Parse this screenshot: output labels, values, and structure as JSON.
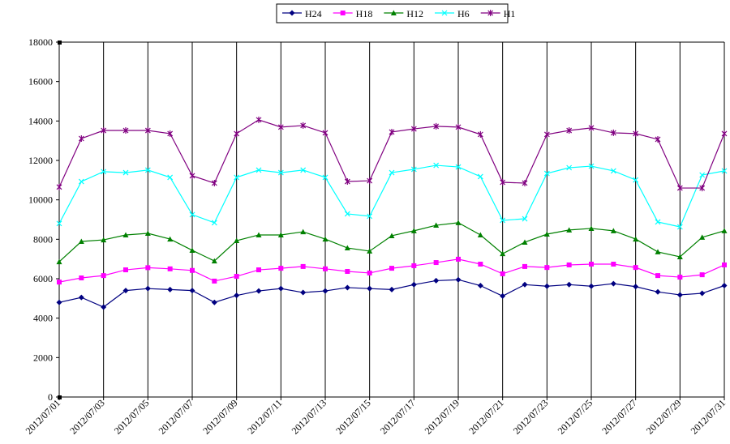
{
  "chart_data": {
    "type": "line",
    "categories": [
      "2012/07/01",
      null,
      "2012/07/03",
      null,
      "2012/07/05",
      null,
      "2012/07/07",
      null,
      "2012/07/09",
      null,
      "2012/07/11",
      null,
      "2012/07/13",
      null,
      "2012/07/15",
      null,
      "2012/07/17",
      null,
      "2012/07/19",
      null,
      "2012/07/21",
      null,
      "2012/07/23",
      null,
      "2012/07/25",
      null,
      "2012/07/27",
      null,
      "2012/07/29",
      null,
      "2012/07/31"
    ],
    "series": [
      {
        "name": "H24",
        "color": "#000080",
        "marker": "diamond",
        "values": [
          4800,
          5050,
          4560,
          5400,
          5500,
          5450,
          5400,
          4800,
          5150,
          5380,
          5500,
          5300,
          5380,
          5550,
          5500,
          5450,
          5700,
          5900,
          5950,
          5650,
          5120,
          5700,
          5620,
          5700,
          5620,
          5750,
          5600,
          5330,
          5180,
          5260,
          5650
        ]
      },
      {
        "name": "H18",
        "color": "#ff00ff",
        "marker": "square",
        "values": [
          5830,
          6040,
          6160,
          6450,
          6560,
          6500,
          6420,
          5880,
          6120,
          6450,
          6530,
          6620,
          6500,
          6370,
          6290,
          6530,
          6660,
          6820,
          6990,
          6740,
          6250,
          6620,
          6570,
          6700,
          6740,
          6740,
          6570,
          6160,
          6080,
          6200,
          6700
        ]
      },
      {
        "name": "H12",
        "color": "#008000",
        "marker": "triangle",
        "values": [
          6860,
          7890,
          7970,
          8220,
          8300,
          8010,
          7440,
          6900,
          7930,
          8220,
          8220,
          8380,
          8010,
          7560,
          7400,
          8180,
          8430,
          8710,
          8840,
          8220,
          7270,
          7850,
          8260,
          8470,
          8550,
          8430,
          8010,
          7360,
          7110,
          8100,
          8430
        ]
      },
      {
        "name": "H6",
        "color": "#00ffff",
        "marker": "x",
        "values": [
          8800,
          10930,
          11430,
          11380,
          11510,
          11140,
          9250,
          8840,
          11140,
          11510,
          11380,
          11510,
          11140,
          9290,
          9170,
          11380,
          11550,
          11750,
          11670,
          11180,
          8960,
          9040,
          11340,
          11630,
          11710,
          11470,
          11010,
          8880,
          8630,
          11260,
          11470
        ]
      },
      {
        "name": "H1",
        "color": "#800080",
        "marker": "star",
        "values": [
          10650,
          13110,
          13520,
          13520,
          13520,
          13360,
          11220,
          10850,
          13360,
          14060,
          13690,
          13770,
          13400,
          10930,
          10970,
          13440,
          13600,
          13730,
          13690,
          13320,
          10890,
          10850,
          13320,
          13520,
          13650,
          13400,
          13360,
          13070,
          10600,
          10600,
          13360
        ]
      }
    ],
    "ylim": [
      0,
      18000
    ],
    "yticks": [
      0,
      2000,
      4000,
      6000,
      8000,
      10000,
      12000,
      14000,
      16000,
      18000
    ],
    "grid": "x",
    "legend": "top"
  }
}
